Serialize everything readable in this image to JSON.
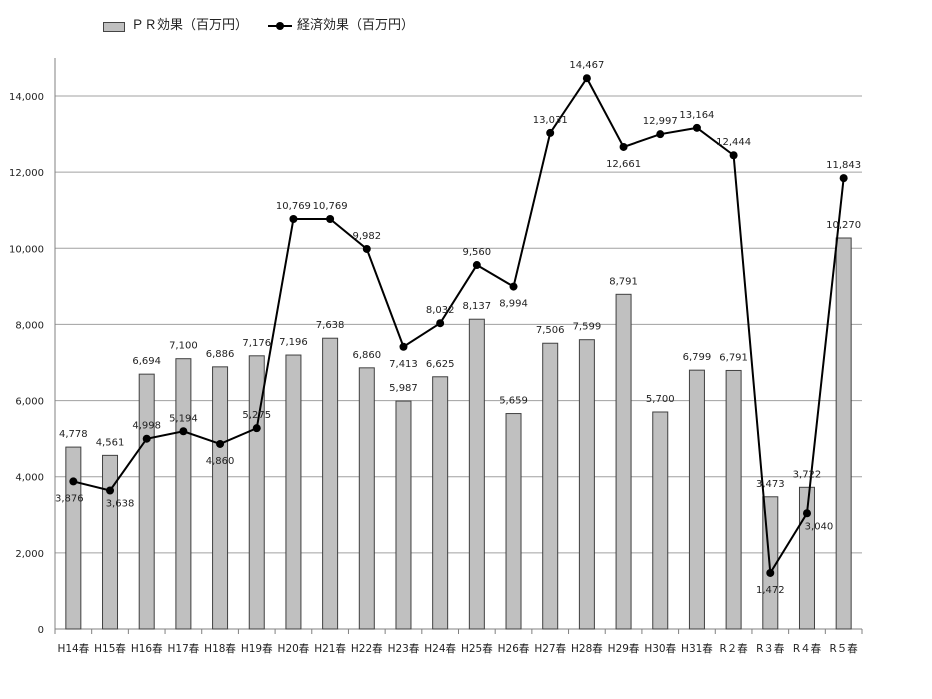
{
  "chart_data": {
    "type": "bar",
    "categories": [
      "H14春",
      "H15春",
      "H16春",
      "H17春",
      "H18春",
      "H19春",
      "H20春",
      "H21春",
      "H22春",
      "H23春",
      "H24春",
      "H25春",
      "H26春",
      "H27春",
      "H28春",
      "H29春",
      "H30春",
      "H31春",
      "R２春",
      "R３春",
      "R４春",
      "R５春"
    ],
    "series": [
      {
        "name": "ＰＲ効果（百万円）",
        "type": "bar",
        "color": "#c0c0c0",
        "values": [
          4778,
          4561,
          6694,
          7100,
          6886,
          7176,
          7196,
          7638,
          6860,
          5987,
          6625,
          8137,
          5659,
          7506,
          7599,
          8791,
          5700,
          6799,
          6791,
          3473,
          3722,
          10270
        ]
      },
      {
        "name": "経済効果（百万円）",
        "type": "line",
        "color": "#000000",
        "values": [
          3876,
          3638,
          4998,
          5194,
          4860,
          5275,
          10769,
          10769,
          9982,
          7413,
          8032,
          9560,
          8994,
          13031,
          14467,
          12661,
          12997,
          13164,
          12444,
          1472,
          3040,
          11843
        ]
      }
    ],
    "ylim": [
      0,
      15000
    ],
    "yticks": [
      0,
      2000,
      4000,
      6000,
      8000,
      10000,
      12000,
      14000
    ],
    "ytick_labels": [
      "0",
      "2,000",
      "4,000",
      "6,000",
      "8,000",
      "10,000",
      "12,000",
      "14,000"
    ],
    "bar_labels": [
      "4,778",
      "4,561",
      "6,694",
      "7,100",
      "6,886",
      "7,176",
      "7,196",
      "7,638",
      "6,860",
      "5,987",
      "6,625",
      "8,137",
      "5,659",
      "7,506",
      "7,599",
      "8,791",
      "5,700",
      "6,799",
      "6,791",
      "3,473",
      "3,722",
      "10,270"
    ],
    "line_labels": [
      "3,876",
      "3,638",
      "4,998",
      "5,194",
      "4,860",
      "5,275",
      "10,769",
      "10,769",
      "9,982",
      "7,413",
      "8,032",
      "9,560",
      "8,994",
      "13,031",
      "14,467",
      "12,661",
      "12,997",
      "13,164",
      "12,444",
      "1,472",
      "3,040",
      "11,843"
    ],
    "grid": true,
    "legend": "top-left",
    "title": "",
    "xlabel": "",
    "ylabel": ""
  }
}
